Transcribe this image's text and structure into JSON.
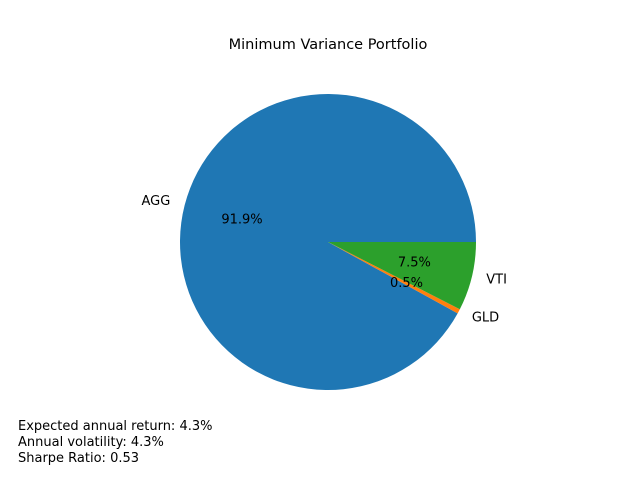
{
  "chart_data": {
    "type": "pie",
    "title": "Minimum Variance Portfolio",
    "slices": [
      {
        "label": "AGG",
        "value": 91.9,
        "pct_label": "91.9%",
        "color": "#1f77b4"
      },
      {
        "label": "GLD",
        "value": 0.5,
        "pct_label": "0.5%",
        "color": "#ff7f0e"
      },
      {
        "label": "VTI",
        "value": 7.5,
        "pct_label": "7.5%",
        "color": "#2ca02c"
      }
    ],
    "start_angle_deg": 0,
    "direction": "counterclockwise"
  },
  "stats": {
    "expected_return": "Expected annual return: 4.3%",
    "volatility": "Annual volatility: 4.3%",
    "sharpe": "Sharpe Ratio: 0.53"
  }
}
